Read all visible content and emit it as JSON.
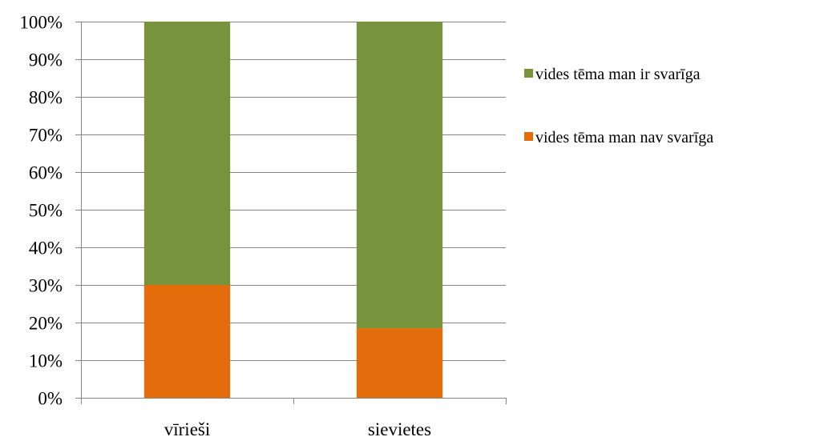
{
  "chart_data": {
    "type": "bar",
    "stacked": true,
    "percent_stacked": true,
    "categories": [
      "vīrieši",
      "sievietes"
    ],
    "series": [
      {
        "name": "vides tēma man nav svarīga",
        "values": [
          30,
          18.5
        ],
        "color": "#E46C0A"
      },
      {
        "name": "vides tēma man ir svarīga",
        "values": [
          70,
          81.5
        ],
        "color": "#77933C"
      }
    ],
    "ylim": [
      0,
      100
    ],
    "yticks": [
      "0%",
      "10%",
      "20%",
      "30%",
      "40%",
      "50%",
      "60%",
      "70%",
      "80%",
      "90%",
      "100%"
    ],
    "grid": true,
    "legend_position": "right",
    "legend_order": [
      "vides tēma man ir svarīga",
      "vides tēma man nav svarīga"
    ],
    "title": "",
    "xlabel": "",
    "ylabel": ""
  }
}
